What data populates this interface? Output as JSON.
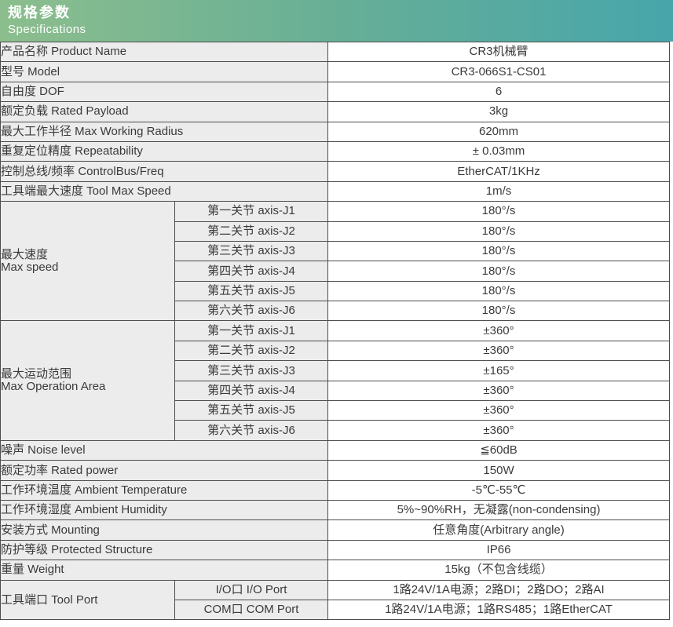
{
  "header": {
    "title_zh": "规格参数",
    "title_en": "Specifications"
  },
  "colors": {
    "header_gradient_left": "#8cbe8d",
    "header_gradient_right": "#47a6ab",
    "label_cell_bg": "#ececec",
    "border": "#4d4d4d",
    "text": "#3a3a3a"
  },
  "table": {
    "rows_top": [
      {
        "label": "产品名称 Product Name",
        "value": "CR3机械臂"
      },
      {
        "label": "型号 Model",
        "value": "CR3-066S1-CS01"
      },
      {
        "label": "自由度 DOF",
        "value": "6"
      },
      {
        "label": "额定负载 Rated Payload",
        "value": "3kg"
      },
      {
        "label": "最大工作半径 Max Working Radius",
        "value": "620mm"
      },
      {
        "label": "重复定位精度 Repeatability",
        "value": "± 0.03mm"
      },
      {
        "label": "控制总线/频率 ControlBus/Freq",
        "value": "EtherCAT/1KHz"
      },
      {
        "label": "工具端最大速度 Tool Max Speed",
        "value": "1m/s"
      }
    ],
    "max_speed": {
      "label_zh": "最大速度",
      "label_en": "Max speed",
      "rows": [
        {
          "joint": "第一关节 axis-J1",
          "value": "180°/s"
        },
        {
          "joint": "第二关节 axis-J2",
          "value": "180°/s"
        },
        {
          "joint": "第三关节 axis-J3",
          "value": "180°/s"
        },
        {
          "joint": "第四关节 axis-J4",
          "value": "180°/s"
        },
        {
          "joint": "第五关节 axis-J5",
          "value": "180°/s"
        },
        {
          "joint": "第六关节 axis-J6",
          "value": "180°/s"
        }
      ]
    },
    "max_operation_area": {
      "label_zh": "最大运动范围",
      "label_en": "Max Operation Area",
      "rows": [
        {
          "joint": "第一关节 axis-J1",
          "value": "±360°"
        },
        {
          "joint": "第二关节 axis-J2",
          "value": "±360°"
        },
        {
          "joint": "第三关节 axis-J3",
          "value": "±165°"
        },
        {
          "joint": "第四关节 axis-J4",
          "value": "±360°"
        },
        {
          "joint": "第五关节 axis-J5",
          "value": "±360°"
        },
        {
          "joint": "第六关节 axis-J6",
          "value": "±360°"
        }
      ]
    },
    "rows_bottom": [
      {
        "label": "噪声 Noise level",
        "value": "≦60dB"
      },
      {
        "label": "额定功率 Rated power",
        "value": "150W"
      },
      {
        "label": "工作环境温度 Ambient Temperature",
        "value": "-5℃-55℃"
      },
      {
        "label": "工作环境湿度 Ambient Humidity",
        "value": "5%~90%RH，无凝露(non-condensing)"
      },
      {
        "label": "安装方式 Mounting",
        "value": "任意角度(Arbitrary angle)"
      },
      {
        "label": "防护等级 Protected Structure",
        "value": "IP66"
      },
      {
        "label": "重量 Weight",
        "value": "15kg（不包含线缆）"
      }
    ],
    "tool_port": {
      "label": "工具端口 Tool Port",
      "rows": [
        {
          "port": "I/O口 I/O Port",
          "value": "1路24V/1A电源；2路DI；2路DO；2路AI"
        },
        {
          "port": "COM口 COM Port",
          "value": "1路24V/1A电源；1路RS485；1路EtherCAT"
        }
      ]
    }
  }
}
